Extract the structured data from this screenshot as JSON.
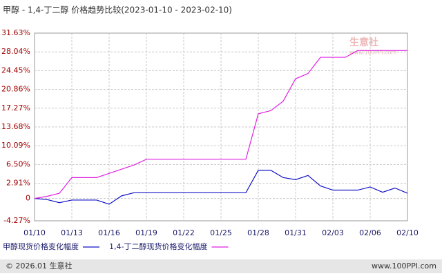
{
  "chart_data": {
    "type": "line",
    "title": "甲醇 - 1,4-丁二醇 价格趋势比较(2023-01-10 - 2023-02-10)",
    "categories": [
      "01/10",
      null,
      null,
      "01/13",
      null,
      null,
      "01/16",
      null,
      null,
      "01/19",
      null,
      null,
      "01/22",
      null,
      null,
      "01/25",
      null,
      null,
      "01/28",
      null,
      null,
      "01/31",
      null,
      null,
      "02/03",
      null,
      null,
      "02/06",
      null,
      null,
      "02/10"
    ],
    "series": [
      {
        "name": "甲醇现货价格变化幅度",
        "color": "#1010c8",
        "values": [
          0,
          -0.2,
          -0.8,
          -0.3,
          -0.3,
          -0.3,
          -1.1,
          0.5,
          1.1,
          1.1,
          1.1,
          1.1,
          1.1,
          1.1,
          1.1,
          1.1,
          1.1,
          1.1,
          5.4,
          5.4,
          4.0,
          3.6,
          4.4,
          2.4,
          1.6,
          1.6,
          1.6,
          2.2,
          1.2,
          2.0,
          1.0
        ]
      },
      {
        "name": "1,4-丁二醇现货价格变化幅度",
        "color": "#e020e0",
        "values": [
          0,
          0.4,
          1.0,
          4.0,
          4.0,
          4.0,
          4.8,
          5.6,
          6.4,
          7.5,
          7.5,
          7.5,
          7.5,
          7.5,
          7.5,
          7.5,
          7.5,
          7.5,
          16.2,
          16.8,
          18.6,
          22.9,
          23.9,
          27.0,
          27.0,
          27.0,
          28.3,
          28.3,
          28.3,
          28.3,
          28.3
        ]
      }
    ],
    "ylim": [
      -4.27,
      31.63
    ],
    "yticks": [
      {
        "value": 31.63,
        "label": "31.63%"
      },
      {
        "value": 28.04,
        "label": "28.04%"
      },
      {
        "value": 24.45,
        "label": "24.45%"
      },
      {
        "value": 20.86,
        "label": "20.86%"
      },
      {
        "value": 17.27,
        "label": "17.27%"
      },
      {
        "value": 13.68,
        "label": "13.68%"
      },
      {
        "value": 10.09,
        "label": "10.09%"
      },
      {
        "value": 6.5,
        "label": "6.50%"
      },
      {
        "value": 2.91,
        "label": "2.91%"
      },
      0,
      {
        "value": -4.27,
        "label": "-4.27%"
      }
    ],
    "grid": true,
    "watermark": [
      "生意社",
      "www.100PPI.com"
    ],
    "footer": {
      "left": "© 2026.01 生意社",
      "right": "www.100PPI.com"
    }
  }
}
